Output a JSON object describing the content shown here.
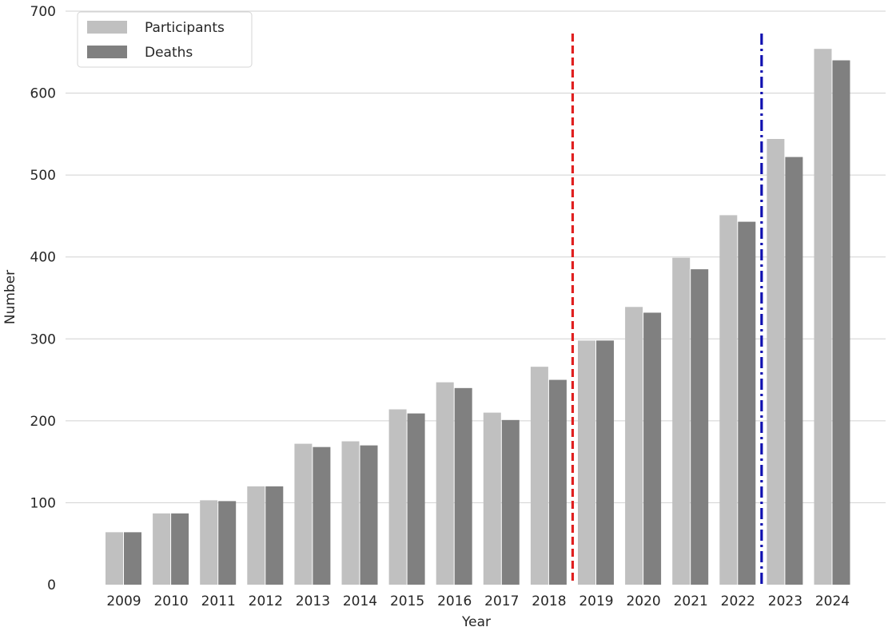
{
  "chart_data": {
    "type": "bar",
    "xlabel": "Year",
    "ylabel": "Number",
    "ylim": [
      0,
      700
    ],
    "yticks": [
      0,
      100,
      200,
      300,
      400,
      500,
      600,
      700
    ],
    "grid": "horizontal",
    "legend_position": "top-left",
    "categories": [
      "2009",
      "2010",
      "2011",
      "2012",
      "2013",
      "2014",
      "2015",
      "2016",
      "2017",
      "2018",
      "2019",
      "2020",
      "2021",
      "2022",
      "2023",
      "2024"
    ],
    "series": [
      {
        "name": "Participants",
        "color": "#c0c0c0",
        "values": [
          64,
          87,
          103,
          120,
          172,
          175,
          214,
          247,
          210,
          266,
          298,
          339,
          399,
          451,
          544,
          654
        ]
      },
      {
        "name": "Deaths",
        "color": "#808080",
        "values": [
          64,
          87,
          102,
          120,
          168,
          170,
          209,
          240,
          201,
          250,
          298,
          332,
          385,
          443,
          522,
          640
        ]
      }
    ],
    "vertical_lines": [
      {
        "between": [
          "2018",
          "2019"
        ],
        "style": "dashed",
        "color": "#e02020"
      },
      {
        "between": [
          "2022",
          "2023"
        ],
        "style": "dash-dot",
        "color": "#1010b0"
      }
    ]
  }
}
